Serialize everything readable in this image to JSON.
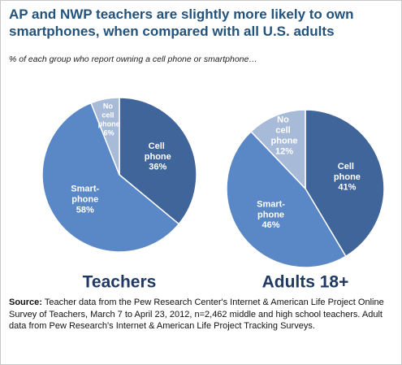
{
  "title": "AP and NWP teachers are slightly more likely to own smartphones, when compared with all U.S. adults",
  "subtitle": "% of each group who report owning a cell phone or smartphone…",
  "source": {
    "label": "Source:",
    "text": "Teacher data from the Pew Research Center's Internet & American Life Project Online Survey of Teachers, March 7 to April 23, 2012, n=2,462 middle and high school teachers.  Adult data from Pew Research's Internet & American Life Project Tracking Surveys."
  },
  "chart_data": [
    {
      "type": "pie",
      "title": "Teachers",
      "categories": [
        "Cell phone",
        "Smart-phone",
        "No cell phone"
      ],
      "values": [
        36,
        58,
        6
      ],
      "value_labels": [
        "36%",
        "58%",
        "6%"
      ],
      "colors": [
        "#40659a",
        "#5a87c6",
        "#a7bbd9"
      ]
    },
    {
      "type": "pie",
      "title": "Adults 18+",
      "categories": [
        "Cell phone",
        "Smart-phone",
        "No cell phone"
      ],
      "values": [
        41,
        46,
        12
      ],
      "value_labels": [
        "41%",
        "46%",
        "12%"
      ],
      "colors": [
        "#40659a",
        "#5a87c6",
        "#a7bbd9"
      ]
    }
  ]
}
